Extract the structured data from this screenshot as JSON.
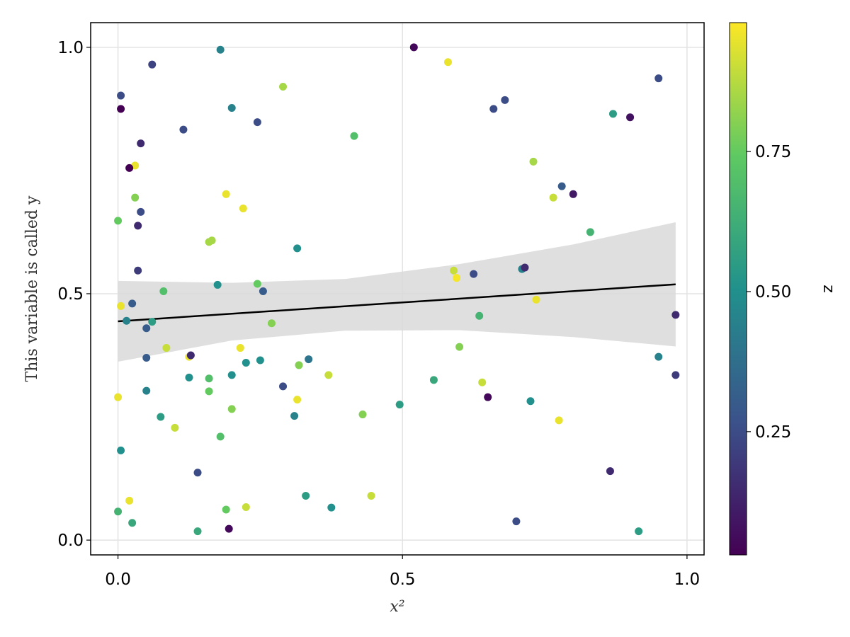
{
  "chart_data": {
    "type": "scatter",
    "title": "",
    "xlabel": "x²",
    "ylabel": "This variable is called y",
    "xlim": [
      -0.048,
      1.03
    ],
    "ylim": [
      -0.03,
      1.05
    ],
    "x_ticks": [
      0.0,
      0.5,
      1.0
    ],
    "y_ticks": [
      0.0,
      0.5,
      1.0
    ],
    "x_tick_labels": [
      "0.0",
      "0.5",
      "1.0"
    ],
    "y_tick_labels": [
      "0.0",
      "0.5",
      "1.0"
    ],
    "grid": true,
    "colormap": "viridis",
    "colorbar": {
      "label": "z",
      "range": [
        0.03,
        0.98
      ],
      "ticks": [
        0.25,
        0.5,
        0.75
      ],
      "tick_labels": [
        "0.25",
        "0.50",
        "0.75"
      ]
    },
    "fit_line": {
      "x": [
        0.0,
        0.98
      ],
      "y": [
        0.444,
        0.519
      ],
      "color": "#000000"
    },
    "confidence_band": {
      "x": [
        0.0,
        0.2,
        0.4,
        0.6,
        0.8,
        0.98
      ],
      "lower": [
        0.362,
        0.405,
        0.425,
        0.426,
        0.412,
        0.393
      ],
      "upper": [
        0.526,
        0.522,
        0.53,
        0.56,
        0.6,
        0.645
      ],
      "color": "#d9d9d9"
    },
    "points": [
      {
        "x": 0.005,
        "y": 0.902,
        "z": 0.25
      },
      {
        "x": 0.005,
        "y": 0.875,
        "z": 0.03
      },
      {
        "x": 0.06,
        "y": 0.965,
        "z": 0.22
      },
      {
        "x": 0.18,
        "y": 0.995,
        "z": 0.45
      },
      {
        "x": 0.52,
        "y": 1.0,
        "z": 0.05
      },
      {
        "x": 0.58,
        "y": 0.97,
        "z": 0.95
      },
      {
        "x": 0.2,
        "y": 0.877,
        "z": 0.45
      },
      {
        "x": 0.29,
        "y": 0.92,
        "z": 0.85
      },
      {
        "x": 0.115,
        "y": 0.833,
        "z": 0.25
      },
      {
        "x": 0.245,
        "y": 0.848,
        "z": 0.25
      },
      {
        "x": 0.66,
        "y": 0.875,
        "z": 0.25
      },
      {
        "x": 0.68,
        "y": 0.893,
        "z": 0.25
      },
      {
        "x": 0.95,
        "y": 0.937,
        "z": 0.25
      },
      {
        "x": 0.87,
        "y": 0.865,
        "z": 0.55
      },
      {
        "x": 0.9,
        "y": 0.858,
        "z": 0.08
      },
      {
        "x": 0.04,
        "y": 0.805,
        "z": 0.15
      },
      {
        "x": 0.415,
        "y": 0.82,
        "z": 0.7
      },
      {
        "x": 0.03,
        "y": 0.76,
        "z": 0.95
      },
      {
        "x": 0.02,
        "y": 0.755,
        "z": 0.03
      },
      {
        "x": 0.73,
        "y": 0.768,
        "z": 0.85
      },
      {
        "x": 0.03,
        "y": 0.695,
        "z": 0.8
      },
      {
        "x": 0.19,
        "y": 0.702,
        "z": 0.95
      },
      {
        "x": 0.22,
        "y": 0.673,
        "z": 0.95
      },
      {
        "x": 0.78,
        "y": 0.718,
        "z": 0.3
      },
      {
        "x": 0.8,
        "y": 0.702,
        "z": 0.1
      },
      {
        "x": 0.765,
        "y": 0.695,
        "z": 0.9
      },
      {
        "x": 0.0,
        "y": 0.648,
        "z": 0.75
      },
      {
        "x": 0.04,
        "y": 0.666,
        "z": 0.25
      },
      {
        "x": 0.035,
        "y": 0.638,
        "z": 0.15
      },
      {
        "x": 0.16,
        "y": 0.605,
        "z": 0.85
      },
      {
        "x": 0.165,
        "y": 0.608,
        "z": 0.85
      },
      {
        "x": 0.83,
        "y": 0.625,
        "z": 0.65
      },
      {
        "x": 0.315,
        "y": 0.592,
        "z": 0.5
      },
      {
        "x": 0.035,
        "y": 0.547,
        "z": 0.2
      },
      {
        "x": 0.59,
        "y": 0.547,
        "z": 0.9
      },
      {
        "x": 0.595,
        "y": 0.532,
        "z": 0.97
      },
      {
        "x": 0.625,
        "y": 0.54,
        "z": 0.25
      },
      {
        "x": 0.71,
        "y": 0.55,
        "z": 0.45
      },
      {
        "x": 0.715,
        "y": 0.553,
        "z": 0.15
      },
      {
        "x": 0.175,
        "y": 0.518,
        "z": 0.5
      },
      {
        "x": 0.245,
        "y": 0.52,
        "z": 0.75
      },
      {
        "x": 0.08,
        "y": 0.505,
        "z": 0.7
      },
      {
        "x": 0.255,
        "y": 0.505,
        "z": 0.3
      },
      {
        "x": 0.005,
        "y": 0.475,
        "z": 0.95
      },
      {
        "x": 0.025,
        "y": 0.48,
        "z": 0.3
      },
      {
        "x": 0.015,
        "y": 0.445,
        "z": 0.45
      },
      {
        "x": 0.06,
        "y": 0.443,
        "z": 0.55
      },
      {
        "x": 0.05,
        "y": 0.43,
        "z": 0.3
      },
      {
        "x": 0.27,
        "y": 0.44,
        "z": 0.8
      },
      {
        "x": 0.635,
        "y": 0.455,
        "z": 0.65
      },
      {
        "x": 0.735,
        "y": 0.488,
        "z": 0.95
      },
      {
        "x": 0.98,
        "y": 0.457,
        "z": 0.15
      },
      {
        "x": 0.085,
        "y": 0.39,
        "z": 0.9
      },
      {
        "x": 0.215,
        "y": 0.39,
        "z": 0.95
      },
      {
        "x": 0.6,
        "y": 0.392,
        "z": 0.8
      },
      {
        "x": 0.125,
        "y": 0.372,
        "z": 0.95
      },
      {
        "x": 0.128,
        "y": 0.375,
        "z": 0.15
      },
      {
        "x": 0.05,
        "y": 0.37,
        "z": 0.3
      },
      {
        "x": 0.225,
        "y": 0.36,
        "z": 0.5
      },
      {
        "x": 0.25,
        "y": 0.365,
        "z": 0.5
      },
      {
        "x": 0.335,
        "y": 0.367,
        "z": 0.4
      },
      {
        "x": 0.318,
        "y": 0.355,
        "z": 0.8
      },
      {
        "x": 0.95,
        "y": 0.372,
        "z": 0.45
      },
      {
        "x": 0.125,
        "y": 0.33,
        "z": 0.5
      },
      {
        "x": 0.16,
        "y": 0.328,
        "z": 0.7
      },
      {
        "x": 0.2,
        "y": 0.335,
        "z": 0.5
      },
      {
        "x": 0.37,
        "y": 0.335,
        "z": 0.9
      },
      {
        "x": 0.98,
        "y": 0.335,
        "z": 0.2
      },
      {
        "x": 0.05,
        "y": 0.303,
        "z": 0.45
      },
      {
        "x": 0.16,
        "y": 0.302,
        "z": 0.75
      },
      {
        "x": 0.29,
        "y": 0.312,
        "z": 0.25
      },
      {
        "x": 0.555,
        "y": 0.325,
        "z": 0.6
      },
      {
        "x": 0.64,
        "y": 0.32,
        "z": 0.9
      },
      {
        "x": 0.0,
        "y": 0.29,
        "z": 0.95
      },
      {
        "x": 0.315,
        "y": 0.285,
        "z": 0.95
      },
      {
        "x": 0.65,
        "y": 0.29,
        "z": 0.05
      },
      {
        "x": 0.2,
        "y": 0.266,
        "z": 0.8
      },
      {
        "x": 0.495,
        "y": 0.275,
        "z": 0.55
      },
      {
        "x": 0.725,
        "y": 0.282,
        "z": 0.5
      },
      {
        "x": 0.075,
        "y": 0.25,
        "z": 0.55
      },
      {
        "x": 0.31,
        "y": 0.252,
        "z": 0.45
      },
      {
        "x": 0.43,
        "y": 0.255,
        "z": 0.8
      },
      {
        "x": 0.1,
        "y": 0.228,
        "z": 0.9
      },
      {
        "x": 0.18,
        "y": 0.21,
        "z": 0.7
      },
      {
        "x": 0.775,
        "y": 0.243,
        "z": 0.95
      },
      {
        "x": 0.005,
        "y": 0.182,
        "z": 0.5
      },
      {
        "x": 0.14,
        "y": 0.137,
        "z": 0.25
      },
      {
        "x": 0.865,
        "y": 0.14,
        "z": 0.15
      },
      {
        "x": 0.02,
        "y": 0.08,
        "z": 0.95
      },
      {
        "x": 0.33,
        "y": 0.09,
        "z": 0.55
      },
      {
        "x": 0.445,
        "y": 0.09,
        "z": 0.9
      },
      {
        "x": 0.0,
        "y": 0.058,
        "z": 0.65
      },
      {
        "x": 0.19,
        "y": 0.062,
        "z": 0.75
      },
      {
        "x": 0.225,
        "y": 0.067,
        "z": 0.9
      },
      {
        "x": 0.375,
        "y": 0.066,
        "z": 0.5
      },
      {
        "x": 0.025,
        "y": 0.035,
        "z": 0.6
      },
      {
        "x": 0.14,
        "y": 0.018,
        "z": 0.6
      },
      {
        "x": 0.195,
        "y": 0.023,
        "z": 0.05
      },
      {
        "x": 0.7,
        "y": 0.038,
        "z": 0.25
      },
      {
        "x": 0.915,
        "y": 0.018,
        "z": 0.55
      }
    ]
  }
}
